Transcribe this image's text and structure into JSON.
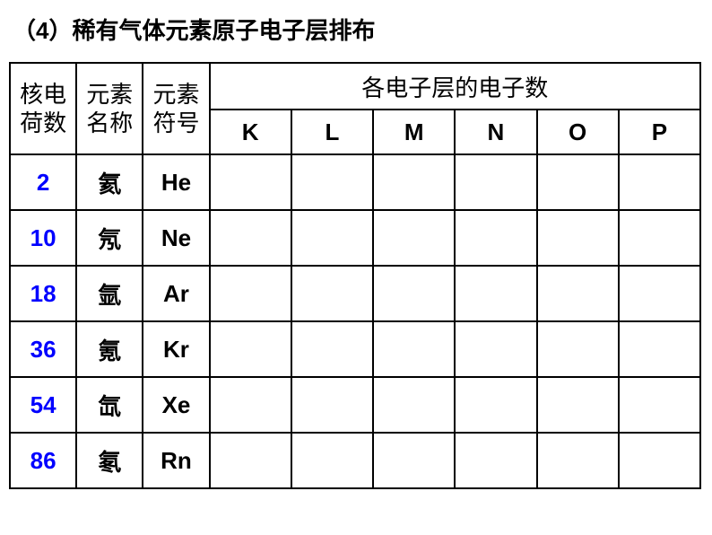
{
  "title": "（4）稀有气体元素原子电子层排布",
  "headers": {
    "charge_line1": "核电",
    "charge_line2": "荷数",
    "name_line1": "元素",
    "name_line2": "名称",
    "symbol_line1": "元素",
    "symbol_line2": "符号",
    "shells_span": "各电子层的电子数",
    "shell_K": "K",
    "shell_L": "L",
    "shell_M": "M",
    "shell_N": "N",
    "shell_O": "O",
    "shell_P": "P"
  },
  "rows": [
    {
      "charge": "2",
      "name": "氦",
      "symbol": "He",
      "K": "",
      "L": "",
      "M": "",
      "N": "",
      "O": "",
      "P": ""
    },
    {
      "charge": "10",
      "name": "氖",
      "symbol": "Ne",
      "K": "",
      "L": "",
      "M": "",
      "N": "",
      "O": "",
      "P": ""
    },
    {
      "charge": "18",
      "name": "氩",
      "symbol": "Ar",
      "K": "",
      "L": "",
      "M": "",
      "N": "",
      "O": "",
      "P": ""
    },
    {
      "charge": "36",
      "name": "氪",
      "symbol": "Kr",
      "K": "",
      "L": "",
      "M": "",
      "N": "",
      "O": "",
      "P": ""
    },
    {
      "charge": "54",
      "name": "氙",
      "symbol": "Xe",
      "K": "",
      "L": "",
      "M": "",
      "N": "",
      "O": "",
      "P": ""
    },
    {
      "charge": "86",
      "name": "氡",
      "symbol": "Rn",
      "K": "",
      "L": "",
      "M": "",
      "N": "",
      "O": "",
      "P": ""
    }
  ],
  "colors": {
    "charge_text": "#0000ff",
    "text": "#000000",
    "border": "#000000",
    "background": "#ffffff"
  }
}
